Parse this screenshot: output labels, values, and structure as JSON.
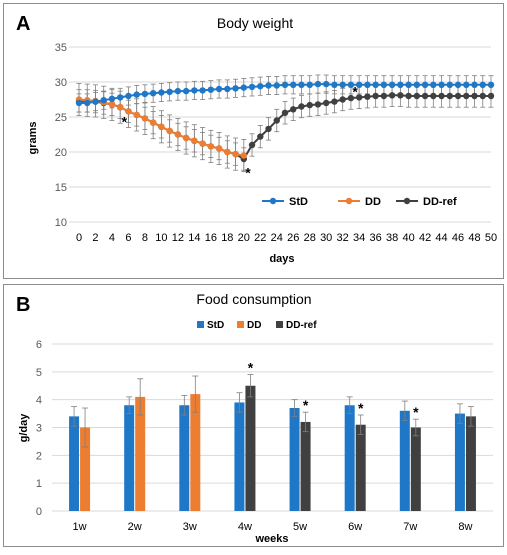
{
  "panels": [
    {
      "letter": "A"
    },
    {
      "letter": "B"
    }
  ],
  "colors": {
    "StD": "#1f77c8",
    "DD": "#ed7d31",
    "DD-ref": "#404040",
    "grid": "#d9d9d9",
    "border": "#8c8c8c"
  },
  "chart_data": [
    {
      "type": "line",
      "title": "Body weight",
      "xlabel": "days",
      "ylabel": "grams",
      "ylim": [
        10,
        35
      ],
      "yticks": [
        10,
        15,
        20,
        25,
        30,
        35
      ],
      "xticks": [
        0,
        2,
        4,
        6,
        8,
        10,
        12,
        14,
        16,
        18,
        20,
        22,
        24,
        26,
        28,
        30,
        32,
        34,
        36,
        38,
        40,
        42,
        44,
        46,
        48,
        50
      ],
      "grid": "horizontal",
      "legend_position": "bottom-right",
      "legend": [
        "StD",
        "DD",
        "DD-ref"
      ],
      "series": [
        {
          "name": "StD",
          "x": [
            0,
            1,
            2,
            3,
            4,
            5,
            6,
            7,
            8,
            9,
            10,
            11,
            12,
            13,
            14,
            15,
            16,
            17,
            18,
            19,
            20,
            21,
            22,
            23,
            24,
            25,
            26,
            27,
            28,
            29,
            30,
            31,
            32,
            33,
            34,
            35,
            36,
            37,
            38,
            39,
            40,
            41,
            42,
            43,
            44,
            45,
            46,
            47,
            48,
            49,
            50
          ],
          "y": [
            27.0,
            27.0,
            27.2,
            27.4,
            27.6,
            27.8,
            28.0,
            28.2,
            28.3,
            28.4,
            28.5,
            28.6,
            28.7,
            28.7,
            28.8,
            28.8,
            28.9,
            29.0,
            29.0,
            29.1,
            29.2,
            29.3,
            29.4,
            29.5,
            29.5,
            29.6,
            29.6,
            29.6,
            29.6,
            29.7,
            29.7,
            29.6,
            29.6,
            29.6,
            29.6,
            29.6,
            29.6,
            29.6,
            29.6,
            29.6,
            29.6,
            29.6,
            29.6,
            29.6,
            29.6,
            29.6,
            29.6,
            29.6,
            29.6,
            29.6,
            29.6
          ],
          "err": 1.3
        },
        {
          "name": "DD",
          "x": [
            0,
            1,
            2,
            3,
            4,
            5,
            6,
            7,
            8,
            9,
            10,
            11,
            12,
            13,
            14,
            15,
            16,
            17,
            18,
            19,
            20
          ],
          "y": [
            27.5,
            27.4,
            27.3,
            27.1,
            26.8,
            26.4,
            25.8,
            25.3,
            24.8,
            24.2,
            23.6,
            23.0,
            22.5,
            22.0,
            21.6,
            21.2,
            20.8,
            20.5,
            20.0,
            19.7,
            19.5
          ],
          "err": 2.3
        },
        {
          "name": "DD-ref",
          "x": [
            0,
            1,
            2,
            3,
            4,
            5,
            6,
            7,
            8,
            9,
            10,
            11,
            12,
            13,
            14,
            15,
            16,
            17,
            18,
            19,
            20,
            21,
            22,
            23,
            24,
            25,
            26,
            27,
            28,
            29,
            30,
            31,
            32,
            33,
            34,
            35,
            36,
            37,
            38,
            39,
            40,
            41,
            42,
            43,
            44,
            45,
            46,
            47,
            48,
            49,
            50
          ],
          "y": [
            27.3,
            27.3,
            27.2,
            27.0,
            26.8,
            26.4,
            25.8,
            25.3,
            24.8,
            24.2,
            23.6,
            23.0,
            22.5,
            22.0,
            21.6,
            21.2,
            20.8,
            20.5,
            20.0,
            19.7,
            19.0,
            21.0,
            22.2,
            23.3,
            24.5,
            25.6,
            26.1,
            26.5,
            26.7,
            26.8,
            27.0,
            27.2,
            27.5,
            27.7,
            27.8,
            27.9,
            28.0,
            28.0,
            28.1,
            28.1,
            28.0,
            28.0,
            28.0,
            28.0,
            28.0,
            28.0,
            28.0,
            28.0,
            28.0,
            28.0,
            28.0
          ],
          "err": 1.6
        }
      ],
      "annotations": [
        {
          "text": "*",
          "x": 5.5,
          "y": 24.5
        },
        {
          "text": "*",
          "x": 20.5,
          "y": 17.2
        },
        {
          "text": "*",
          "x": 33.5,
          "y": 28.8
        }
      ]
    },
    {
      "type": "bar",
      "title": "Food consumption",
      "xlabel": "weeks",
      "ylabel": "g/day",
      "ylim": [
        0,
        6
      ],
      "yticks": [
        0,
        1,
        2,
        3,
        4,
        5,
        6
      ],
      "categories": [
        "1w",
        "2w",
        "3w",
        "4w",
        "5w",
        "6w",
        "7w",
        "8w"
      ],
      "grid": "horizontal",
      "legend_position": "top",
      "legend": [
        "StD",
        "DD",
        "DD-ref"
      ],
      "series": [
        {
          "name": "StD",
          "values": [
            3.4,
            3.8,
            3.8,
            3.9,
            3.7,
            3.8,
            3.6,
            3.5
          ],
          "err": [
            0.35,
            0.3,
            0.35,
            0.35,
            0.3,
            0.3,
            0.35,
            0.35
          ]
        },
        {
          "name": "DD",
          "values": [
            3.0,
            4.1,
            4.2,
            null,
            null,
            null,
            null,
            null
          ],
          "err": [
            0.7,
            0.65,
            0.65,
            null,
            null,
            null,
            null,
            null
          ]
        },
        {
          "name": "DD-ref",
          "values": [
            null,
            null,
            null,
            4.5,
            3.2,
            3.1,
            3.0,
            3.4
          ],
          "err": [
            null,
            null,
            null,
            0.4,
            0.35,
            0.35,
            0.3,
            0.35
          ]
        }
      ],
      "annotations": [
        {
          "text": "*",
          "category": "4w"
        },
        {
          "text": "*",
          "category": "5w"
        },
        {
          "text": "*",
          "category": "6w"
        },
        {
          "text": "*",
          "category": "7w"
        }
      ]
    }
  ]
}
